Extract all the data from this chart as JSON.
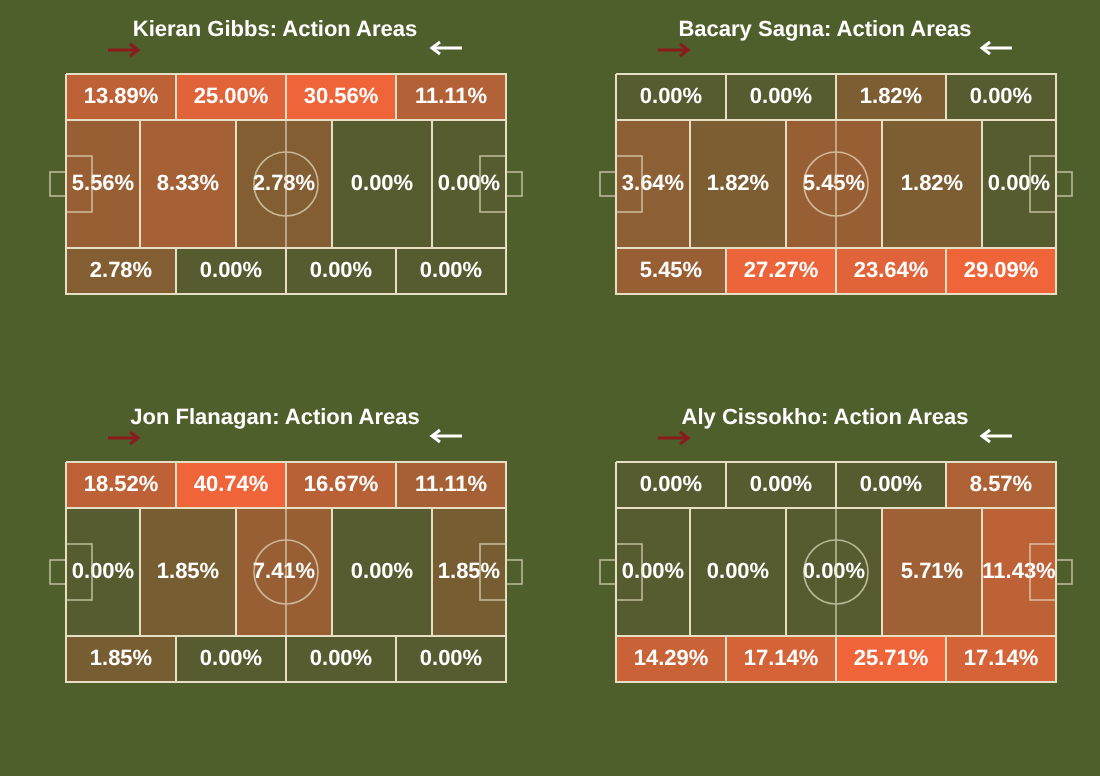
{
  "chart_data": [
    {
      "type": "other",
      "title": "Kieran Gibbs: Action Areas",
      "values": [
        13.89,
        25.0,
        30.56,
        11.11,
        5.56,
        8.33,
        2.78,
        0.0,
        0.0,
        2.78,
        0.0,
        0.0,
        0.0
      ],
      "value_labels": [
        "13.89%",
        "25.00%",
        "30.56%",
        "11.11%",
        "5.56%",
        "8.33%",
        "2.78%",
        "0.00%",
        "0.00%",
        "2.78%",
        "0.00%",
        "0.00%",
        "0.00%"
      ]
    },
    {
      "type": "other",
      "title": "Bacary Sagna: Action Areas",
      "values": [
        0.0,
        0.0,
        1.82,
        0.0,
        3.64,
        1.82,
        5.45,
        1.82,
        0.0,
        5.45,
        27.27,
        23.64,
        29.09
      ],
      "value_labels": [
        "0.00%",
        "0.00%",
        "1.82%",
        "0.00%",
        "3.64%",
        "1.82%",
        "5.45%",
        "1.82%",
        "0.00%",
        "5.45%",
        "27.27%",
        "23.64%",
        "29.09%"
      ]
    },
    {
      "type": "other",
      "title": "Jon Flanagan: Action Areas",
      "values": [
        18.52,
        40.74,
        16.67,
        11.11,
        0.0,
        1.85,
        7.41,
        0.0,
        1.85,
        1.85,
        0.0,
        0.0,
        0.0
      ],
      "value_labels": [
        "18.52%",
        "40.74%",
        "16.67%",
        "11.11%",
        "0.00%",
        "1.85%",
        "7.41%",
        "0.00%",
        "1.85%",
        "1.85%",
        "0.00%",
        "0.00%",
        "0.00%"
      ]
    },
    {
      "type": "other",
      "title": "Aly Cissokho: Action Areas",
      "values": [
        0.0,
        0.0,
        0.0,
        8.57,
        0.0,
        0.0,
        0.0,
        5.71,
        11.43,
        14.29,
        17.14,
        25.71,
        17.14
      ],
      "value_labels": [
        "0.00%",
        "0.00%",
        "0.00%",
        "8.57%",
        "0.00%",
        "0.00%",
        "0.00%",
        "5.71%",
        "11.43%",
        "14.29%",
        "17.14%",
        "25.71%",
        "17.14%"
      ]
    }
  ]
}
